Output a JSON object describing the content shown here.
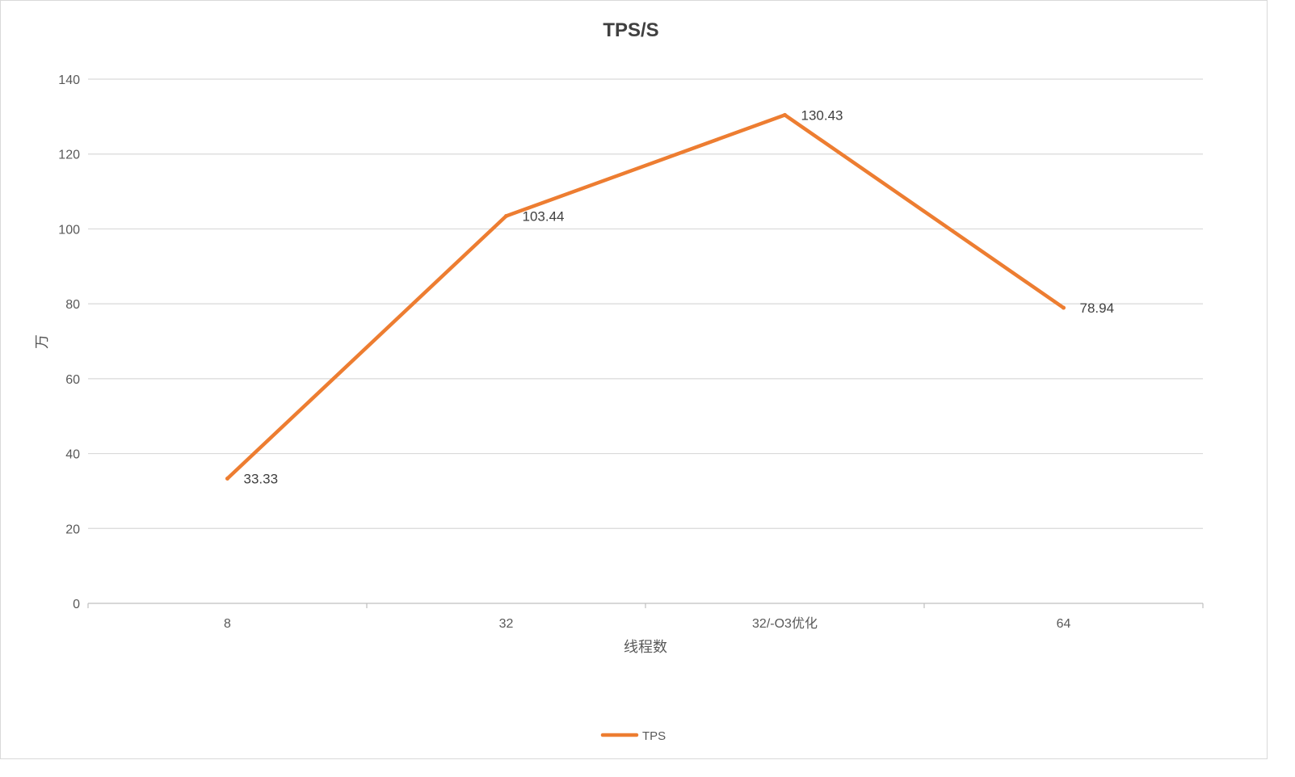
{
  "chart_data": {
    "type": "line",
    "title": "TPS/S",
    "xlabel": "线程数",
    "ylabel": "万",
    "categories": [
      "8",
      "32",
      "32/-O3优化",
      "64"
    ],
    "series": [
      {
        "name": "TPS",
        "values": [
          33.33,
          103.44,
          130.43,
          78.94
        ],
        "color": "#ED7D31"
      }
    ],
    "data_labels": [
      "33.33",
      "103.44",
      "130.43",
      "78.94"
    ],
    "ylim": [
      0,
      140
    ],
    "yticks": [
      "0",
      "20",
      "40",
      "60",
      "80",
      "100",
      "120",
      "140"
    ],
    "grid": true,
    "legend": "bottom"
  }
}
